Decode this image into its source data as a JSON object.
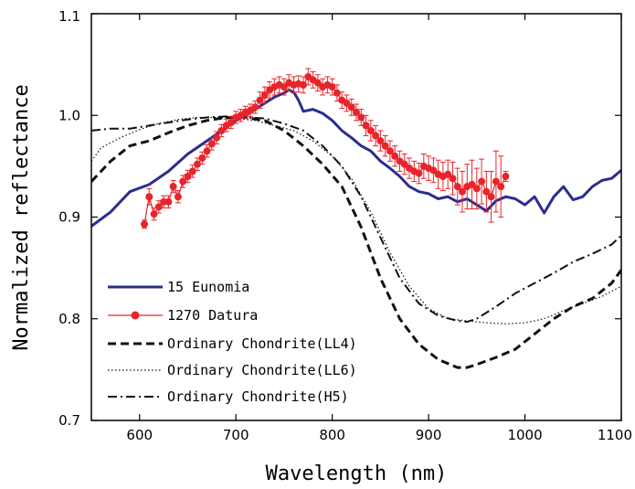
{
  "chart_data": {
    "type": "line",
    "xlabel": "Wavelength (nm)",
    "ylabel": "Normalized reflectance",
    "xlim": [
      550,
      1100
    ],
    "ylim": [
      0.7,
      1.1
    ],
    "x_ticks": [
      "600",
      "700",
      "800",
      "900",
      "1000",
      "1100"
    ],
    "x_tick_values": [
      600,
      700,
      800,
      900,
      1000,
      1100
    ],
    "y_ticks": [
      "0.7",
      "0.8",
      "0.9",
      "1.0",
      "1.1"
    ],
    "y_tick_values": [
      0.7,
      0.8,
      0.9,
      1.0,
      1.1
    ],
    "grid": false,
    "legend_position": "bottom-left",
    "series": [
      {
        "name": "15 Eunomia",
        "style": "solid",
        "color": "#2a2e8c",
        "x": [
          550,
          570,
          590,
          610,
          630,
          650,
          670,
          690,
          700,
          710,
          720,
          730,
          740,
          750,
          755,
          760,
          765,
          770,
          780,
          790,
          800,
          810,
          820,
          830,
          840,
          850,
          860,
          870,
          880,
          890,
          900,
          910,
          920,
          930,
          940,
          950,
          960,
          970,
          980,
          990,
          1000,
          1010,
          1020,
          1030,
          1040,
          1050,
          1060,
          1070,
          1080,
          1090,
          1100
        ],
        "y": [
          0.891,
          0.905,
          0.925,
          0.932,
          0.945,
          0.962,
          0.975,
          0.988,
          0.995,
          1.0,
          1.006,
          1.012,
          1.018,
          1.022,
          1.025,
          1.023,
          1.015,
          1.004,
          1.006,
          1.002,
          0.995,
          0.985,
          0.978,
          0.97,
          0.965,
          0.955,
          0.948,
          0.94,
          0.93,
          0.925,
          0.923,
          0.918,
          0.92,
          0.915,
          0.918,
          0.912,
          0.906,
          0.916,
          0.92,
          0.918,
          0.912,
          0.92,
          0.904,
          0.92,
          0.93,
          0.917,
          0.92,
          0.93,
          0.936,
          0.938,
          0.946
        ]
      },
      {
        "name": "1270 Datura",
        "style": "markers",
        "color": "#e8242a",
        "x": [
          605,
          610,
          615,
          620,
          625,
          630,
          635,
          640,
          645,
          650,
          655,
          660,
          665,
          670,
          675,
          680,
          685,
          690,
          695,
          700,
          705,
          710,
          715,
          720,
          725,
          730,
          735,
          740,
          745,
          750,
          755,
          760,
          765,
          770,
          775,
          780,
          785,
          790,
          795,
          800,
          805,
          810,
          815,
          820,
          825,
          830,
          835,
          840,
          845,
          850,
          855,
          860,
          865,
          870,
          875,
          880,
          885,
          890,
          895,
          900,
          905,
          910,
          915,
          920,
          925,
          930,
          935,
          940,
          945,
          950,
          955,
          960,
          965,
          970,
          975,
          980
        ],
        "y": [
          0.893,
          0.92,
          0.903,
          0.91,
          0.915,
          0.915,
          0.93,
          0.92,
          0.935,
          0.94,
          0.945,
          0.952,
          0.958,
          0.965,
          0.972,
          0.978,
          0.985,
          0.99,
          0.993,
          0.998,
          1.0,
          1.003,
          1.005,
          1.008,
          1.015,
          1.02,
          1.025,
          1.028,
          1.03,
          1.028,
          1.032,
          1.03,
          1.031,
          1.03,
          1.038,
          1.035,
          1.032,
          1.028,
          1.03,
          1.028,
          1.022,
          1.015,
          1.012,
          1.008,
          1.003,
          0.998,
          0.99,
          0.985,
          0.98,
          0.975,
          0.97,
          0.965,
          0.96,
          0.955,
          0.952,
          0.948,
          0.945,
          0.943,
          0.95,
          0.948,
          0.946,
          0.942,
          0.94,
          0.942,
          0.938,
          0.93,
          0.925,
          0.93,
          0.932,
          0.928,
          0.935,
          0.925,
          0.92,
          0.935,
          0.93,
          0.94
        ],
        "yerr": [
          0.004,
          0.008,
          0.006,
          0.006,
          0.006,
          0.006,
          0.006,
          0.006,
          0.006,
          0.006,
          0.006,
          0.006,
          0.006,
          0.006,
          0.006,
          0.006,
          0.006,
          0.006,
          0.006,
          0.006,
          0.006,
          0.006,
          0.006,
          0.006,
          0.008,
          0.008,
          0.008,
          0.008,
          0.008,
          0.008,
          0.008,
          0.008,
          0.008,
          0.008,
          0.008,
          0.008,
          0.008,
          0.008,
          0.008,
          0.008,
          0.008,
          0.008,
          0.008,
          0.008,
          0.008,
          0.008,
          0.01,
          0.01,
          0.01,
          0.01,
          0.01,
          0.01,
          0.01,
          0.01,
          0.01,
          0.01,
          0.01,
          0.01,
          0.012,
          0.012,
          0.012,
          0.014,
          0.014,
          0.014,
          0.016,
          0.018,
          0.02,
          0.022,
          0.024,
          0.02,
          0.022,
          0.02,
          0.025,
          0.03,
          0.03,
          0.005
        ]
      },
      {
        "name": "Ordinary Chondrite(LL4)",
        "style": "dashed",
        "color": "#111111",
        "x": [
          550,
          570,
          590,
          610,
          630,
          650,
          670,
          690,
          710,
          730,
          750,
          770,
          790,
          810,
          830,
          850,
          870,
          890,
          910,
          930,
          940,
          950,
          970,
          990,
          1010,
          1030,
          1050,
          1070,
          1090,
          1100
        ],
        "y": [
          0.935,
          0.955,
          0.97,
          0.975,
          0.983,
          0.99,
          0.995,
          0.998,
          0.998,
          0.995,
          0.985,
          0.97,
          0.952,
          0.93,
          0.89,
          0.84,
          0.8,
          0.775,
          0.76,
          0.752,
          0.752,
          0.755,
          0.762,
          0.77,
          0.785,
          0.8,
          0.812,
          0.82,
          0.835,
          0.848
        ]
      },
      {
        "name": "Ordinary Chondrite(LL6)",
        "style": "dotted",
        "color": "#111111",
        "x": [
          550,
          560,
          580,
          600,
          620,
          640,
          660,
          680,
          700,
          720,
          740,
          760,
          780,
          800,
          820,
          840,
          860,
          880,
          900,
          920,
          940,
          960,
          980,
          1000,
          1020,
          1040,
          1060,
          1080,
          1100
        ],
        "y": [
          0.955,
          0.968,
          0.978,
          0.986,
          0.992,
          0.996,
          0.998,
          0.998,
          0.997,
          0.995,
          0.99,
          0.985,
          0.975,
          0.96,
          0.938,
          0.905,
          0.865,
          0.832,
          0.81,
          0.8,
          0.798,
          0.796,
          0.795,
          0.796,
          0.8,
          0.808,
          0.815,
          0.822,
          0.832
        ]
      },
      {
        "name": "Ordinary Chondrite(H5)",
        "style": "dashdot",
        "color": "#111111",
        "x": [
          550,
          570,
          590,
          610,
          630,
          650,
          670,
          690,
          710,
          730,
          750,
          770,
          790,
          810,
          830,
          850,
          870,
          890,
          910,
          930,
          940,
          950,
          970,
          990,
          1010,
          1030,
          1050,
          1070,
          1090,
          1100
        ],
        "y": [
          0.985,
          0.987,
          0.987,
          0.99,
          0.993,
          0.996,
          0.998,
          0.999,
          0.998,
          0.997,
          0.992,
          0.985,
          0.97,
          0.95,
          0.92,
          0.88,
          0.84,
          0.815,
          0.803,
          0.798,
          0.797,
          0.8,
          0.812,
          0.825,
          0.835,
          0.845,
          0.856,
          0.864,
          0.873,
          0.882
        ]
      }
    ]
  },
  "colors": {
    "axis": "#000000",
    "background": "#ffffff"
  }
}
